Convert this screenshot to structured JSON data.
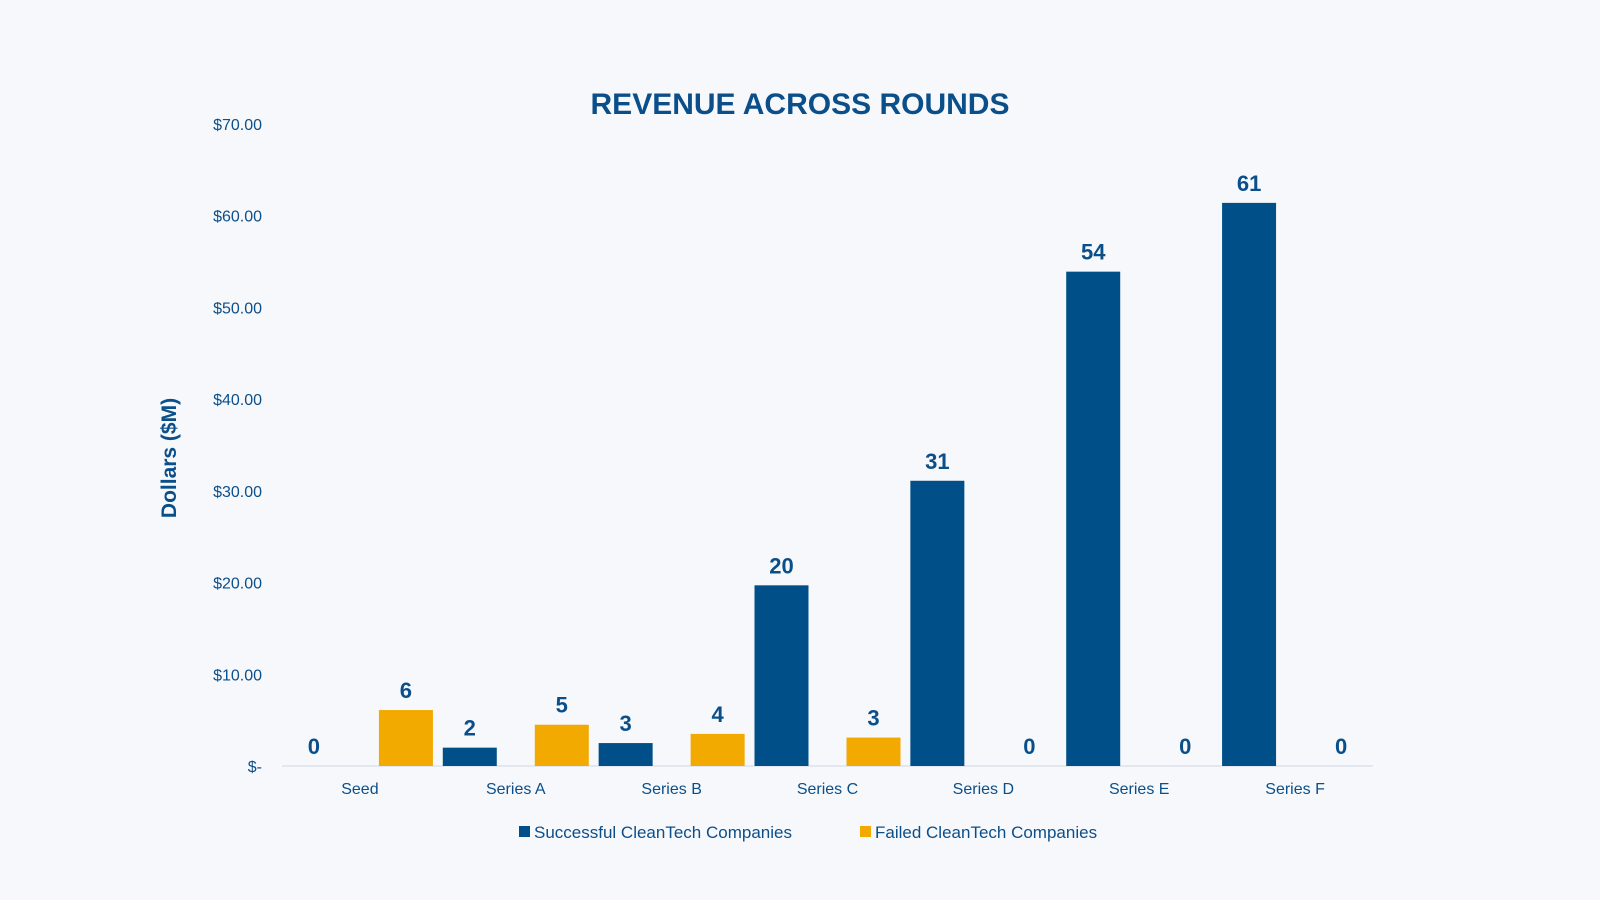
{
  "chart_data": {
    "type": "bar",
    "title": "REVENUE ACROSS ROUNDS",
    "xlabel": "",
    "ylabel": "Dollars ($M)",
    "ylim": [
      0,
      70
    ],
    "y_ticks": [
      0,
      10,
      20,
      30,
      40,
      50,
      60,
      70
    ],
    "y_tick_labels": [
      "$-",
      "$10.00",
      "$20.00",
      "$30.00",
      "$40.00",
      "$50.00",
      "$60.00",
      "$70.00"
    ],
    "categories": [
      "Seed",
      "Series A",
      "Series B",
      "Series C",
      "Series D",
      "Series E",
      "Series F"
    ],
    "series": [
      {
        "name": "Successful CleanTech Companies",
        "color": "#004f88",
        "values": [
          0,
          2,
          2.5,
          19.7,
          31.1,
          53.9,
          61.4
        ],
        "labels": [
          "0",
          "2",
          "3",
          "20",
          "31",
          "54",
          "61"
        ]
      },
      {
        "name": "Failed CleanTech Companies",
        "color": "#f2a900",
        "values": [
          6.1,
          4.5,
          3.5,
          3.1,
          0,
          0,
          0
        ],
        "labels": [
          "6",
          "5",
          "4",
          "3",
          "0",
          "0",
          "0"
        ]
      }
    ],
    "grid": false,
    "legend_position": "bottom"
  }
}
